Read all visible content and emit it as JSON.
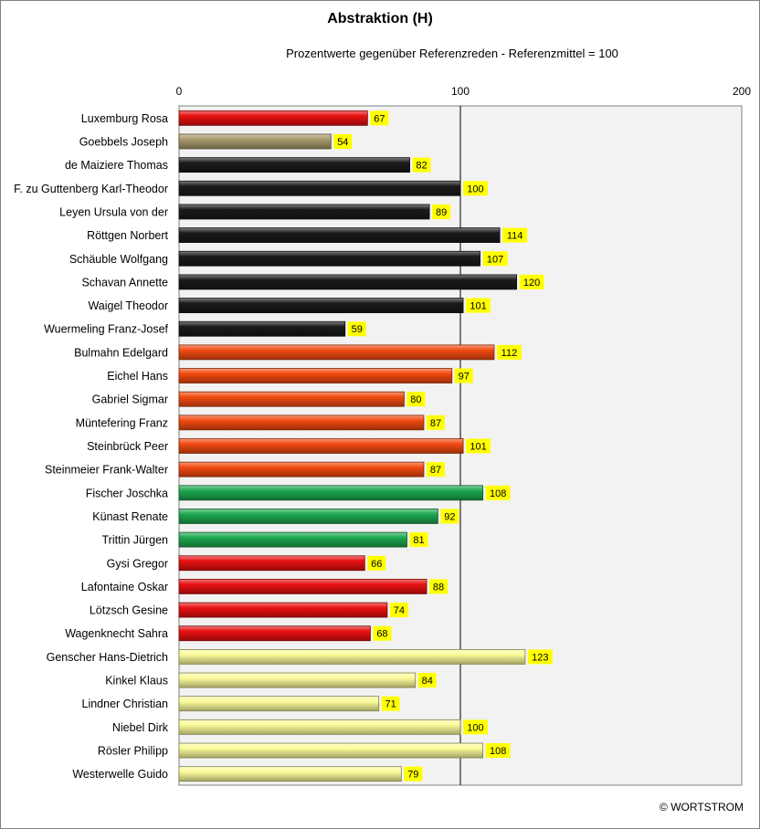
{
  "chart_data": {
    "type": "bar",
    "orientation": "horizontal",
    "title": "Abstraktion (H)",
    "subtitle": "Prozentwerte  gegenüber Referenzreden - Referenzmittel = 100",
    "xlim": [
      0,
      200
    ],
    "xticks": [
      "0",
      "100",
      "200"
    ],
    "reference_line": 100,
    "categories": [
      "Luxemburg Rosa",
      "Goebbels Joseph",
      "de Maiziere Thomas",
      "F. zu Guttenberg Karl-Theodor",
      "Leyen Ursula von der",
      "Röttgen Norbert",
      "Schäuble Wolfgang",
      "Schavan Annette",
      "Waigel Theodor",
      "Wuermeling Franz-Josef",
      "Bulmahn Edelgard",
      "Eichel Hans",
      "Gabriel Sigmar",
      "Müntefering Franz",
      "Steinbrück Peer",
      "Steinmeier Frank-Walter",
      "Fischer Joschka",
      "Künast Renate",
      "Trittin Jürgen",
      "Gysi Gregor",
      "Lafontaine Oskar",
      "Lötzsch Gesine",
      "Wagenknecht Sahra",
      "Genscher Hans-Dietrich",
      "Kinkel Klaus",
      "Lindner Christian",
      "Niebel Dirk",
      "Rösler Philipp",
      "Westerwelle Guido"
    ],
    "values": [
      67,
      54,
      82,
      100,
      89,
      114,
      107,
      120,
      101,
      59,
      112,
      97,
      80,
      87,
      101,
      87,
      108,
      92,
      81,
      66,
      88,
      74,
      68,
      123,
      84,
      71,
      100,
      108,
      79
    ],
    "colors": [
      "#e81010",
      "#a89a6a",
      "#1a1a1a",
      "#1a1a1a",
      "#1a1a1a",
      "#1a1a1a",
      "#1a1a1a",
      "#1a1a1a",
      "#1a1a1a",
      "#1a1a1a",
      "#f24a10",
      "#f24a10",
      "#f24a10",
      "#f24a10",
      "#f24a10",
      "#f24a10",
      "#1ea850",
      "#1ea850",
      "#1ea850",
      "#e81010",
      "#e81010",
      "#e81010",
      "#e81010",
      "#fcfc9c",
      "#fcfc9c",
      "#fcfc9c",
      "#fcfc9c",
      "#fcfc9c",
      "#fcfc9c"
    ],
    "label_bg": "#ffff00",
    "plot_bg": "#f2f2f2",
    "grid": false
  },
  "credit": "© WORTSTROM"
}
